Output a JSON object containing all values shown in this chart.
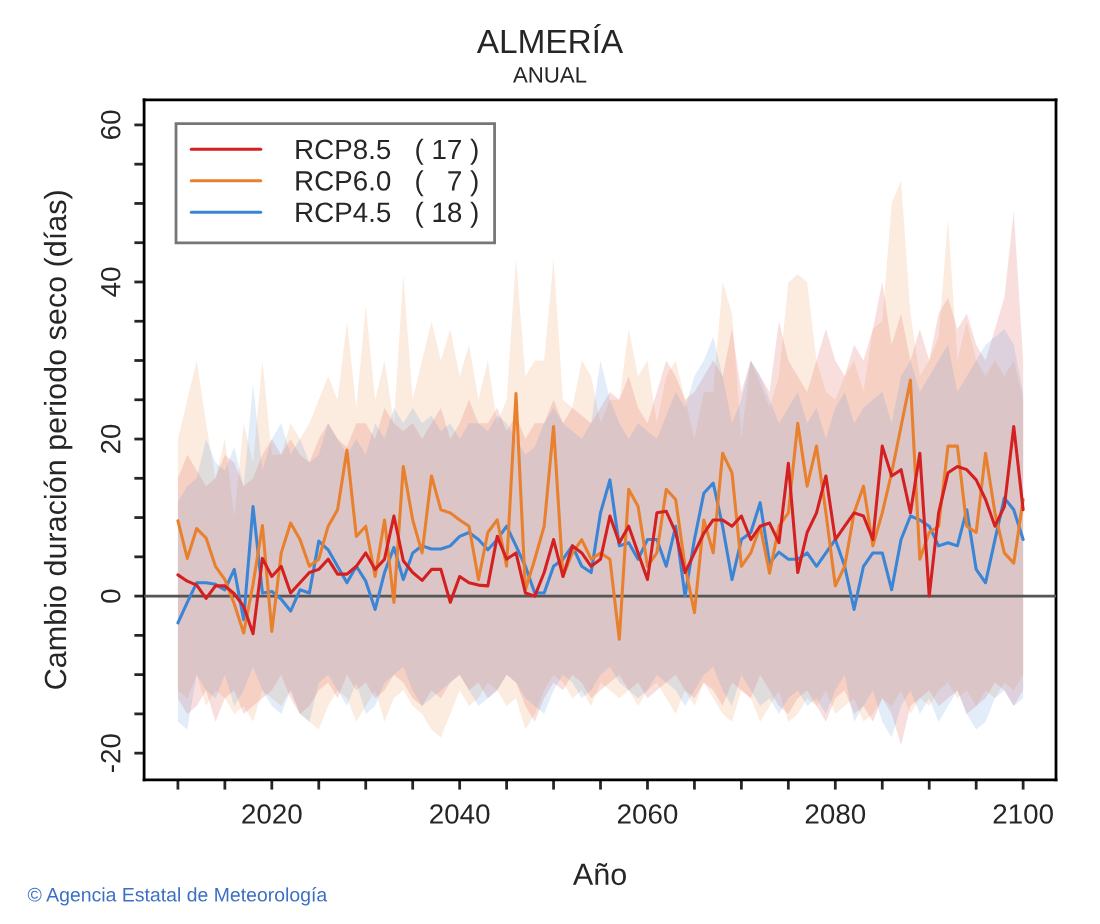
{
  "chart_data": {
    "type": "line",
    "title": "ALMERÍA",
    "subtitle": "ANUAL",
    "xlabel": "Año",
    "ylabel": "Cambio duración periodo seco (días)",
    "annotations": [
      "© Agencia Estatal de Meteorología"
    ],
    "x": [
      2010,
      2011,
      2012,
      2013,
      2014,
      2015,
      2016,
      2017,
      2018,
      2019,
      2020,
      2021,
      2022,
      2023,
      2024,
      2025,
      2026,
      2027,
      2028,
      2029,
      2030,
      2031,
      2032,
      2033,
      2034,
      2035,
      2036,
      2037,
      2038,
      2039,
      2040,
      2041,
      2042,
      2043,
      2044,
      2045,
      2046,
      2047,
      2048,
      2049,
      2050,
      2051,
      2052,
      2053,
      2054,
      2055,
      2056,
      2057,
      2058,
      2059,
      2060,
      2061,
      2062,
      2063,
      2064,
      2065,
      2066,
      2067,
      2068,
      2069,
      2070,
      2071,
      2072,
      2073,
      2074,
      2075,
      2076,
      2077,
      2078,
      2079,
      2080,
      2081,
      2082,
      2083,
      2084,
      2085,
      2086,
      2087,
      2088,
      2089,
      2090,
      2091,
      2092,
      2093,
      2094,
      2095,
      2096,
      2097,
      2098,
      2099,
      2100
    ],
    "series": [
      {
        "name": "RCP8.5   ( 17 )",
        "color": "#d42020",
        "values": [
          2.7,
          1.9,
          1.4,
          -0.3,
          1.3,
          1.3,
          0.3,
          -1.3,
          -4.8,
          4.8,
          2.5,
          3.8,
          0.4,
          1.7,
          3.0,
          3.4,
          4.7,
          2.8,
          2.8,
          3.8,
          5.5,
          3.4,
          4.7,
          10.2,
          4.5,
          3.0,
          2.0,
          3.4,
          3.4,
          -0.8,
          2.5,
          1.7,
          1.4,
          1.3,
          7.6,
          4.7,
          5.5,
          0.4,
          0.0,
          3.0,
          7.2,
          2.5,
          6.4,
          5.5,
          3.8,
          4.7,
          10.2,
          6.8,
          8.9,
          5.5,
          2.1,
          10.6,
          10.8,
          8.1,
          3.0,
          5.5,
          8.0,
          9.7,
          9.7,
          8.9,
          10.2,
          7.2,
          8.9,
          9.3,
          6.8,
          16.9,
          3.0,
          8.1,
          10.6,
          15.3,
          7.2,
          8.9,
          10.6,
          10.2,
          7.2,
          19.1,
          15.3,
          16.1,
          10.6,
          18.2,
          0.0,
          10.6,
          15.7,
          16.5,
          16.1,
          14.8,
          12.3,
          8.9,
          11.4,
          21.6,
          11.0
        ],
        "lower": [
          -13,
          -15,
          -14,
          -12,
          -16,
          -13,
          -12,
          -15,
          -14,
          -13,
          -12,
          -10,
          -13,
          -15,
          -14,
          -12,
          -11,
          -13,
          -10,
          -12,
          -11,
          -13,
          -12,
          -10,
          -11,
          -13,
          -14,
          -12,
          -13,
          -11,
          -10,
          -12,
          -11,
          -13,
          -12,
          -10,
          -11,
          -14,
          -16,
          -13,
          -11,
          -12,
          -10,
          -11,
          -13,
          -12,
          -11,
          -10,
          -12,
          -11,
          -13,
          -12,
          -11,
          -10,
          -12,
          -13,
          -11,
          -12,
          -14,
          -11,
          -12,
          -13,
          -10,
          -12,
          -14,
          -15,
          -13,
          -12,
          -14,
          -16,
          -13,
          -12,
          -15,
          -14,
          -16,
          -13,
          -15,
          -19,
          -14,
          -13,
          -12,
          -14,
          -13,
          -12,
          -15,
          -14,
          -13,
          -11,
          -12,
          -14,
          -12
        ],
        "upper": [
          15,
          18,
          16,
          14,
          15,
          18,
          17,
          14,
          15,
          18,
          20,
          18,
          20,
          18,
          17,
          20,
          22,
          20,
          19,
          22,
          22,
          20,
          24,
          22,
          21,
          22,
          20,
          22,
          24,
          20,
          22,
          25,
          22,
          22,
          24,
          21,
          23,
          20,
          22,
          22,
          25,
          22,
          24,
          23,
          22,
          24,
          26,
          25,
          28,
          24,
          22,
          26,
          30,
          28,
          25,
          26,
          28,
          30,
          28,
          34,
          26,
          30,
          28,
          26,
          35,
          30,
          28,
          26,
          30,
          34,
          30,
          28,
          32,
          30,
          34,
          40,
          32,
          36,
          30,
          34,
          30,
          36,
          38,
          34,
          36,
          32,
          30,
          34,
          38,
          49,
          30
        ]
      },
      {
        "name": "RCP6.0   (   7 )",
        "color": "#e8802e",
        "values": [
          9.6,
          4.8,
          8.6,
          7.4,
          3.8,
          2.1,
          -1.0,
          -4.7,
          1.5,
          9.0,
          -4.5,
          5.5,
          9.3,
          7.2,
          3.8,
          4.7,
          8.9,
          11.0,
          18.6,
          7.6,
          8.9,
          2.5,
          9.7,
          -0.8,
          16.5,
          9.7,
          5.5,
          15.3,
          11.0,
          10.6,
          9.7,
          8.9,
          2.1,
          8.1,
          9.7,
          3.8,
          25.8,
          0.8,
          4.7,
          8.9,
          21.6,
          2.5,
          5.5,
          7.2,
          4.7,
          5.5,
          4.7,
          -5.5,
          13.6,
          11.4,
          3.8,
          5.5,
          13.6,
          12.3,
          3.8,
          -2.1,
          9.7,
          5.5,
          18.2,
          15.7,
          3.8,
          5.5,
          8.9,
          2.9,
          8.9,
          10.6,
          22.0,
          14.0,
          19.1,
          10.6,
          1.3,
          3.8,
          10.6,
          14.0,
          6.4,
          10.6,
          15.7,
          21.6,
          27.5,
          4.7,
          8.1,
          8.9,
          19.1,
          19.1,
          8.9,
          8.1,
          18.2,
          10.6,
          5.5,
          4.2,
          12.3
        ],
        "lower": [
          -12,
          -13,
          -10,
          -14,
          -12,
          -13,
          -15,
          -14,
          -16,
          -12,
          -13,
          -14,
          -12,
          -15,
          -16,
          -17,
          -14,
          -12,
          -13,
          -16,
          -14,
          -12,
          -16,
          -13,
          -12,
          -14,
          -15,
          -17,
          -18,
          -15,
          -12,
          -14,
          -13,
          -11,
          -12,
          -14,
          -13,
          -17,
          -15,
          -12,
          -10,
          -11,
          -13,
          -12,
          -14,
          -11,
          -12,
          -13,
          -12,
          -14,
          -12,
          -11,
          -13,
          -15,
          -12,
          -14,
          -11,
          -13,
          -15,
          -16,
          -12,
          -13,
          -16,
          -14,
          -12,
          -16,
          -15,
          -13,
          -14,
          -12,
          -15,
          -14,
          -13,
          -16,
          -15,
          -13,
          -14,
          -12,
          -15,
          -13,
          -14,
          -12,
          -11,
          -13,
          -12,
          -14,
          -12,
          -13,
          -11,
          -12,
          -10
        ],
        "upper": [
          20,
          25,
          30,
          22,
          15,
          20,
          10,
          22,
          17,
          30,
          18,
          18,
          22,
          20,
          22,
          25,
          28,
          25,
          35,
          24,
          37,
          25,
          30,
          22,
          41,
          25,
          30,
          35,
          30,
          34,
          28,
          32,
          25,
          30,
          22,
          25,
          43,
          28,
          30,
          30,
          43,
          25,
          24,
          30,
          28,
          22,
          25,
          25,
          34,
          28,
          30,
          22,
          28,
          30,
          25,
          20,
          26,
          26,
          40,
          36,
          20,
          30,
          27,
          24,
          28,
          40,
          41,
          40,
          30,
          26,
          25,
          28,
          30,
          26,
          34,
          35,
          50,
          53,
          36,
          28,
          30,
          33,
          48,
          30,
          35,
          30,
          28,
          30,
          28,
          30,
          25
        ]
      },
      {
        "name": "RCP4.5   ( 18 )",
        "color": "#3a85d6",
        "values": [
          -3.4,
          -0.8,
          1.7,
          1.7,
          1.5,
          0.8,
          3.4,
          -3.0,
          11.4,
          0.4,
          0.6,
          -0.4,
          -1.9,
          0.8,
          0.4,
          7.0,
          5.9,
          3.8,
          1.7,
          3.8,
          1.9,
          -1.7,
          3.0,
          6.2,
          2.1,
          5.5,
          6.4,
          6.0,
          6.0,
          6.4,
          7.6,
          8.1,
          7.2,
          5.9,
          7.2,
          8.9,
          6.4,
          3.8,
          0.4,
          0.4,
          3.8,
          4.7,
          6.4,
          3.8,
          3.0,
          10.6,
          14.8,
          6.4,
          6.8,
          4.7,
          7.2,
          7.2,
          3.8,
          8.9,
          0.0,
          7.2,
          13.1,
          14.4,
          8.9,
          2.1,
          7.2,
          8.1,
          11.9,
          4.2,
          5.6,
          4.7,
          4.7,
          5.5,
          3.8,
          5.5,
          7.2,
          3.8,
          -1.7,
          3.8,
          5.5,
          5.5,
          0.8,
          7.2,
          10.2,
          9.7,
          8.9,
          6.4,
          6.8,
          6.4,
          11.0,
          3.4,
          1.7,
          7.2,
          12.5,
          11.0,
          7.2
        ],
        "lower": [
          -16,
          -17,
          -10,
          -12,
          -13,
          -10,
          -14,
          -12,
          -9,
          -12,
          -14,
          -15,
          -12,
          -15,
          -16,
          -11,
          -10,
          -12,
          -14,
          -11,
          -15,
          -14,
          -11,
          -10,
          -9,
          -12,
          -14,
          -13,
          -12,
          -11,
          -10,
          -12,
          -14,
          -13,
          -12,
          -10,
          -11,
          -13,
          -14,
          -15,
          -12,
          -10,
          -11,
          -13,
          -12,
          -10,
          -9,
          -11,
          -12,
          -13,
          -12,
          -10,
          -11,
          -12,
          -14,
          -12,
          -10,
          -9,
          -12,
          -14,
          -10,
          -12,
          -14,
          -13,
          -15,
          -13,
          -12,
          -14,
          -13,
          -15,
          -12,
          -10,
          -16,
          -14,
          -12,
          -16,
          -18,
          -14,
          -12,
          -15,
          -13,
          -16,
          -14,
          -12,
          -15,
          -17,
          -16,
          -13,
          -12,
          -14,
          -13
        ],
        "upper": [
          12,
          14,
          15,
          20,
          17,
          16,
          19,
          14,
          27,
          16,
          20,
          22,
          18,
          20,
          17,
          18,
          22,
          20,
          18,
          20,
          18,
          22,
          20,
          24,
          22,
          24,
          22,
          23,
          21,
          22,
          20,
          22,
          22,
          21,
          23,
          22,
          20,
          18,
          19,
          22,
          24,
          22,
          21,
          20,
          22,
          30,
          25,
          22,
          20,
          22,
          21,
          20,
          23,
          26,
          24,
          28,
          30,
          33,
          28,
          22,
          25,
          30,
          28,
          25,
          22,
          24,
          26,
          22,
          24,
          20,
          24,
          26,
          22,
          24,
          25,
          26,
          22,
          28,
          30,
          26,
          28,
          30,
          32,
          26,
          28,
          30,
          32,
          33,
          34,
          32,
          26
        ]
      }
    ],
    "xlim": [
      2006.4,
      2103.5
    ],
    "xticks": [
      {
        "value": 2010,
        "label": null
      },
      {
        "value": 2015,
        "label": null
      },
      2020,
      {
        "value": 2025,
        "label": null
      },
      {
        "value": 2030,
        "label": null
      },
      {
        "value": 2035,
        "label": null
      },
      2040,
      {
        "value": 2045,
        "label": null
      },
      {
        "value": 2050,
        "label": null
      },
      {
        "value": 2055,
        "label": null
      },
      2060,
      {
        "value": 2065,
        "label": null
      },
      {
        "value": 2070,
        "label": null
      },
      {
        "value": 2075,
        "label": null
      },
      2080,
      {
        "value": 2085,
        "label": null
      },
      {
        "value": 2090,
        "label": null
      },
      {
        "value": 2095,
        "label": null
      },
      2100
    ],
    "ylim": [
      -23.4,
      63.2
    ],
    "yticks": [
      -20,
      {
        "value": -15,
        "label": null
      },
      {
        "value": -10,
        "label": null
      },
      {
        "value": -5,
        "label": null
      },
      0,
      {
        "value": 5,
        "label": null
      },
      {
        "value": 10,
        "label": null
      },
      {
        "value": 15,
        "label": null
      },
      20,
      {
        "value": 25,
        "label": null
      },
      {
        "value": 30,
        "label": null
      },
      {
        "value": 35,
        "label": null
      },
      40,
      {
        "value": 45,
        "label": null
      },
      {
        "value": 50,
        "label": null
      },
      {
        "value": 55,
        "label": null
      },
      60
    ],
    "ref_lines": [
      {
        "axis": "y",
        "value": 0,
        "color": "#555555"
      }
    ],
    "legend": "top left"
  }
}
